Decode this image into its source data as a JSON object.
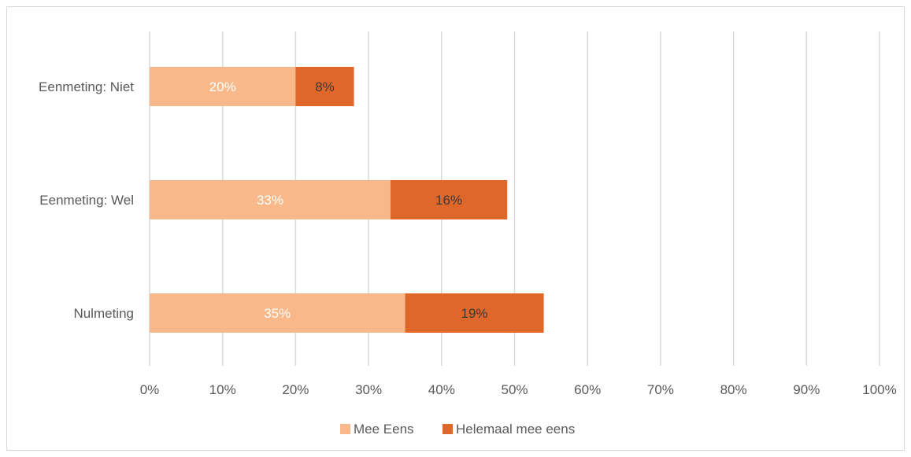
{
  "chart_data": {
    "type": "bar",
    "orientation": "horizontal",
    "stacked": true,
    "categories": [
      "Eenmeting: Niet",
      "Eenmeting: Wel",
      "Nulmeting"
    ],
    "series": [
      {
        "name": "Mee Eens",
        "values": [
          20,
          33,
          35
        ],
        "labels": [
          "20%",
          "33%",
          "35%"
        ],
        "color": "#F9B88A"
      },
      {
        "name": "Helemaal mee eens",
        "values": [
          8,
          16,
          19
        ],
        "labels": [
          "8%",
          "16%",
          "19%"
        ],
        "color": "#E0672A"
      }
    ],
    "xlim": [
      0,
      100
    ],
    "xticks": [
      "0%",
      "10%",
      "20%",
      "30%",
      "40%",
      "50%",
      "60%",
      "70%",
      "80%",
      "90%",
      "100%"
    ],
    "grid": "vertical",
    "legend": "bottom",
    "title": "",
    "xlabel": "",
    "ylabel": ""
  }
}
